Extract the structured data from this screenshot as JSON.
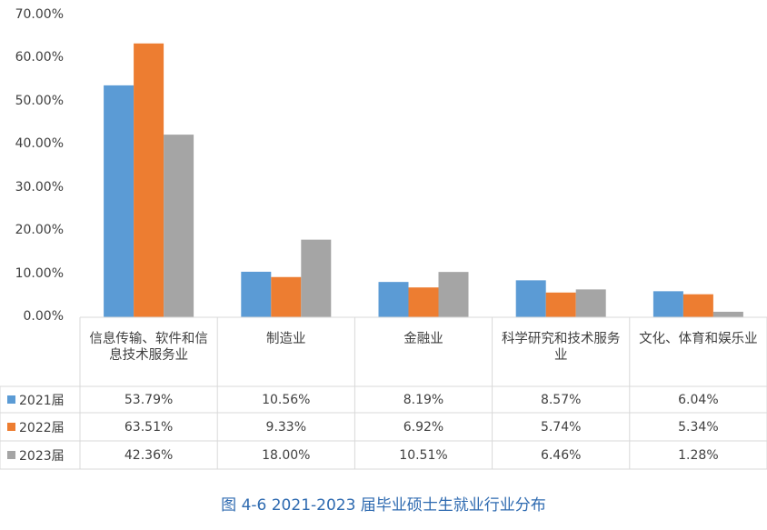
{
  "chart_data": {
    "type": "bar",
    "title": "图 4-6 2021-2023 届毕业硕士生就业行业分布",
    "categories": [
      "信息传输、软件和信息技术服务业",
      "制造业",
      "金融业",
      "科学研究和技术服务业",
      "文化、体育和娱乐业"
    ],
    "series": [
      {
        "name": "2021届",
        "color": "#5b9bd5",
        "values": [
          53.79,
          10.56,
          8.19,
          8.57,
          6.04
        ],
        "labels": [
          "53.79%",
          "10.56%",
          "8.19%",
          "8.57%",
          "6.04%"
        ]
      },
      {
        "name": "2022届",
        "color": "#ed7d31",
        "values": [
          63.51,
          9.33,
          6.92,
          5.74,
          5.34
        ],
        "labels": [
          "63.51%",
          "9.33%",
          "6.92%",
          "5.74%",
          "5.34%"
        ]
      },
      {
        "name": "2023届",
        "color": "#a5a5a5",
        "values": [
          42.36,
          18.0,
          10.51,
          6.46,
          1.28
        ],
        "labels": [
          "42.36%",
          "18.00%",
          "10.51%",
          "6.46%",
          "1.28%"
        ]
      }
    ],
    "yticks": [
      "0.00%",
      "10.00%",
      "20.00%",
      "30.00%",
      "40.00%",
      "50.00%",
      "60.00%",
      "70.00%"
    ],
    "ylim": [
      0,
      70
    ],
    "xlabel": "",
    "ylabel": "",
    "legend": "data table"
  }
}
